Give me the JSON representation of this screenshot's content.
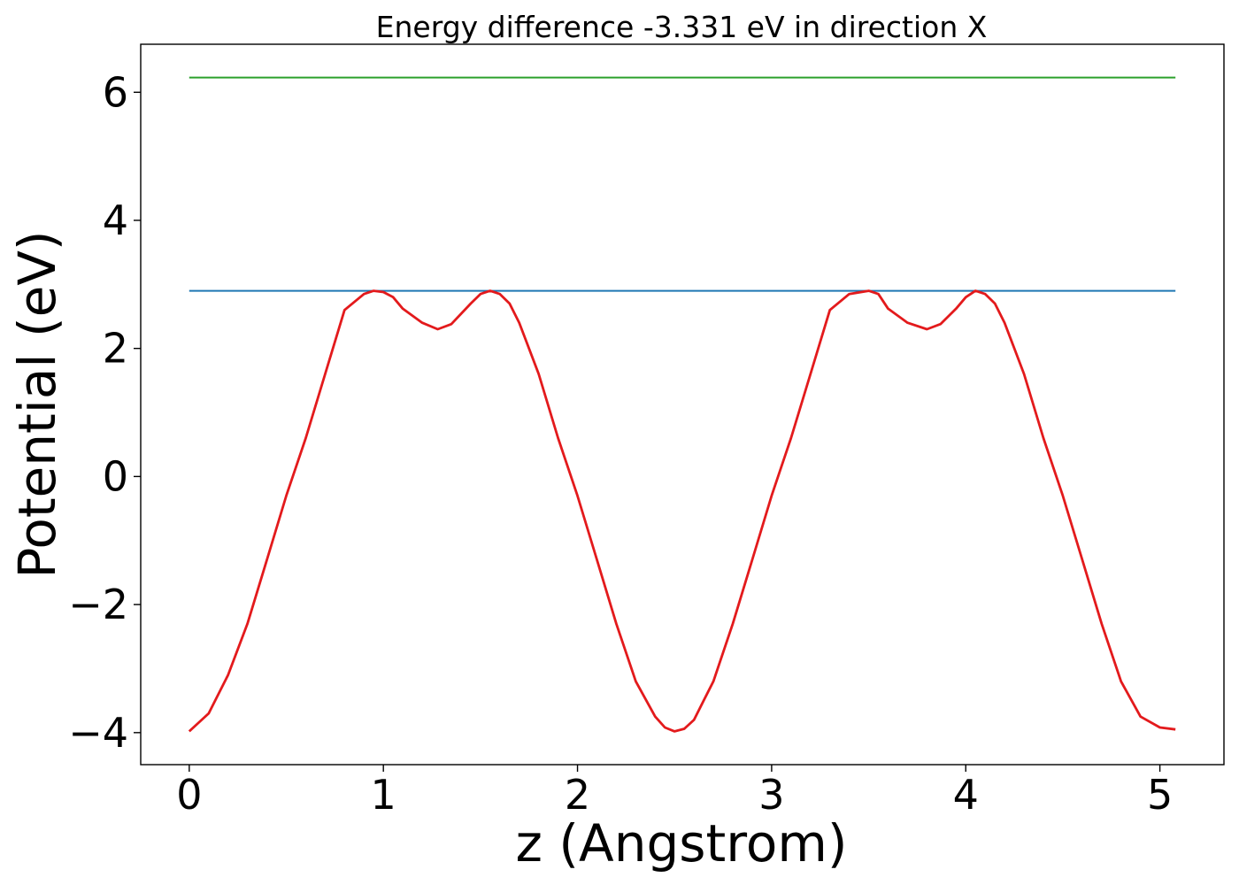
{
  "chart_data": {
    "type": "line",
    "title": "Energy difference -3.331 eV in direction X",
    "xlabel": "z (Angstrom)",
    "ylabel": "Potential (eV)",
    "xlim": [
      -0.25,
      5.33
    ],
    "ylim": [
      -4.5,
      6.75
    ],
    "xticks": [
      0,
      1,
      2,
      3,
      4,
      5
    ],
    "xtick_labels": [
      "0",
      "1",
      "2",
      "3",
      "4",
      "5"
    ],
    "yticks": [
      -4,
      -2,
      0,
      2,
      4,
      6
    ],
    "ytick_labels": [
      "−4",
      "−2",
      "0",
      "2",
      "4",
      "6"
    ],
    "grid": false,
    "series": [
      {
        "color": "#2ca02c",
        "x": [
          0,
          5.08
        ],
        "y": [
          6.23,
          6.23
        ]
      },
      {
        "color": "#1f77b4",
        "x": [
          0,
          5.08
        ],
        "y": [
          2.9,
          2.9
        ]
      },
      {
        "color": "#e31a1c",
        "x": [
          0,
          0.1,
          0.2,
          0.3,
          0.4,
          0.5,
          0.6,
          0.7,
          0.8,
          0.9,
          0.95,
          1.0,
          1.05,
          1.1,
          1.2,
          1.28,
          1.35,
          1.45,
          1.5,
          1.55,
          1.6,
          1.65,
          1.7,
          1.8,
          1.9,
          2.0,
          2.1,
          2.2,
          2.3,
          2.4,
          2.45,
          2.5,
          2.55,
          2.6,
          2.65,
          2.7,
          2.8,
          2.9,
          3.0,
          3.1,
          3.2,
          3.3,
          3.4,
          3.5,
          3.55,
          3.6,
          3.7,
          3.8,
          3.87,
          3.95,
          4.0,
          4.05,
          4.1,
          4.15,
          4.2,
          4.3,
          4.4,
          4.5,
          4.6,
          4.7,
          4.8,
          4.9,
          5.0,
          5.08
        ],
        "y": [
          -3.98,
          -3.7,
          -3.1,
          -2.3,
          -1.3,
          -0.3,
          0.6,
          1.6,
          2.6,
          2.85,
          2.9,
          2.88,
          2.8,
          2.62,
          2.4,
          2.3,
          2.38,
          2.7,
          2.85,
          2.9,
          2.85,
          2.7,
          2.4,
          1.6,
          0.6,
          -0.3,
          -1.3,
          -2.3,
          -3.2,
          -3.75,
          -3.92,
          -3.98,
          -3.94,
          -3.8,
          -3.5,
          -3.2,
          -2.3,
          -1.3,
          -0.3,
          0.6,
          1.6,
          2.6,
          2.85,
          2.9,
          2.85,
          2.62,
          2.4,
          2.3,
          2.38,
          2.62,
          2.8,
          2.9,
          2.85,
          2.7,
          2.4,
          1.6,
          0.6,
          -0.3,
          -1.3,
          -2.3,
          -3.2,
          -3.75,
          -3.92,
          -3.95
        ]
      }
    ]
  }
}
